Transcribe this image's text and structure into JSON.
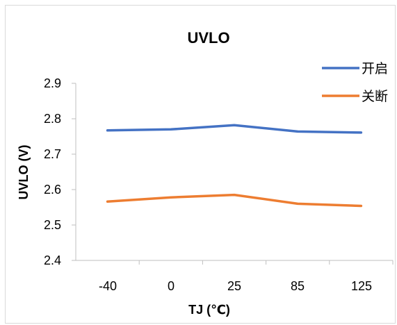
{
  "chart_data": {
    "type": "line",
    "title": "UVLO",
    "xlabel": "TJ (℃)",
    "ylabel": "UVLO (V)",
    "categories": [
      "-40",
      "0",
      "25",
      "85",
      "125"
    ],
    "ylim": [
      2.4,
      2.9
    ],
    "yticks": [
      "2.9",
      "2.8",
      "2.7",
      "2.6",
      "2.5",
      "2.4"
    ],
    "grid": false,
    "legend_position": "top-right",
    "series": [
      {
        "name": "开启",
        "color": "#4472C4",
        "values": [
          2.767,
          2.77,
          2.782,
          2.764,
          2.761
        ]
      },
      {
        "name": "关断",
        "color": "#ED7D31",
        "values": [
          2.566,
          2.578,
          2.585,
          2.56,
          2.554
        ]
      }
    ]
  }
}
